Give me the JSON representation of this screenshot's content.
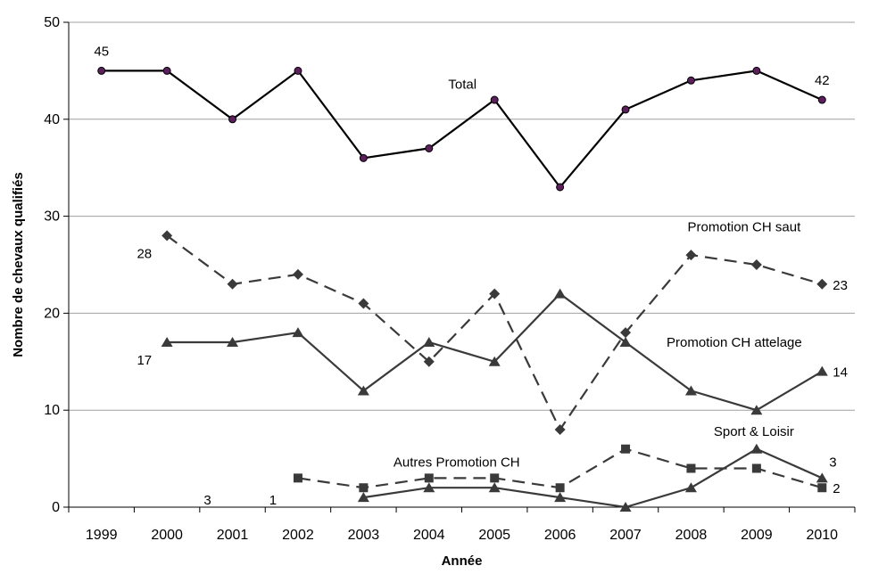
{
  "chart_data": {
    "type": "line",
    "title": "",
    "xlabel": "Année",
    "ylabel": "Nombre de chevaux qualifiés",
    "x": [
      "1999",
      "2000",
      "2001",
      "2002",
      "2003",
      "2004",
      "2005",
      "2006",
      "2007",
      "2008",
      "2009",
      "2010"
    ],
    "ylim": [
      0,
      50
    ],
    "yticks": [
      "0",
      "10",
      "20",
      "30",
      "40",
      "50"
    ],
    "grid": "horizontal",
    "legend": "none",
    "series": [
      {
        "name": "Total",
        "values": [
          45,
          45,
          40,
          45,
          36,
          37,
          42,
          33,
          41,
          44,
          45,
          42
        ],
        "color": "#000000",
        "marker": "circle",
        "marker_color": "#5b1f5b",
        "dash": false
      },
      {
        "name": "Promotion CH saut",
        "values": [
          null,
          28,
          23,
          24,
          21,
          15,
          22,
          8,
          18,
          26,
          25,
          23
        ],
        "color": "#3a3a3a",
        "marker": "diamond",
        "dash": true
      },
      {
        "name": "Promotion CH attelage",
        "values": [
          null,
          17,
          17,
          18,
          12,
          17,
          15,
          22,
          17,
          12,
          10,
          14
        ],
        "color": "#3a3a3a",
        "marker": "triangle",
        "dash": false
      },
      {
        "name": "Autres Promotion CH",
        "values": [
          null,
          null,
          null,
          3,
          2,
          3,
          3,
          2,
          6,
          4,
          4,
          2
        ],
        "color": "#3a3a3a",
        "marker": "square",
        "dash": true
      },
      {
        "name": "Sport & Loisir",
        "values": [
          null,
          null,
          null,
          null,
          1,
          2,
          2,
          1,
          0,
          2,
          6,
          3
        ],
        "color": "#3a3a3a",
        "marker": "triangle",
        "dash": false
      }
    ],
    "annotations": [
      {
        "text": "45",
        "series": 0,
        "index": 0,
        "pos": "above"
      },
      {
        "text": "42",
        "series": 0,
        "index": 11,
        "pos": "above"
      },
      {
        "text": "Total",
        "series": 0,
        "index": 6,
        "pos": "label"
      },
      {
        "text": "Promotion CH saut",
        "series": 1,
        "index": 10,
        "pos": "label"
      },
      {
        "text": "28",
        "series": 1,
        "index": 1,
        "pos": "below"
      },
      {
        "text": "23",
        "series": 1,
        "index": 11,
        "pos": "right"
      },
      {
        "text": "Promotion CH attelage",
        "series": 2,
        "index": 10,
        "pos": "label"
      },
      {
        "text": "17",
        "series": 2,
        "index": 1,
        "pos": "below"
      },
      {
        "text": "14",
        "series": 2,
        "index": 11,
        "pos": "right"
      },
      {
        "text": "Autres Promotion CH",
        "series": 3,
        "index": 5,
        "pos": "label"
      },
      {
        "text": "3",
        "series": 3,
        "index": 2,
        "pos": "left"
      },
      {
        "text": "2",
        "series": 3,
        "index": 11,
        "pos": "right"
      },
      {
        "text": "Sport & Loisir",
        "series": 4,
        "index": 10,
        "pos": "label"
      },
      {
        "text": "1",
        "series": 4,
        "index": 3,
        "pos": "left"
      },
      {
        "text": "3",
        "series": 4,
        "index": 11,
        "pos": "above-right"
      }
    ]
  }
}
